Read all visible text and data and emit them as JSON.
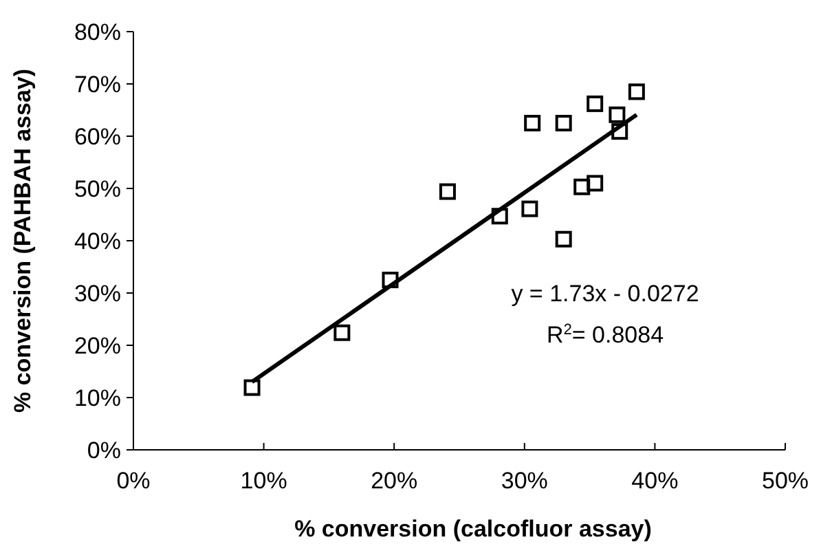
{
  "chart_data": {
    "type": "scatter",
    "xlabel": "% conversion (calcofluor assay)",
    "ylabel": "% conversion (PAHBAH assay)",
    "xlim": [
      0,
      50
    ],
    "xticks": [
      {
        "value": 0,
        "label": "0%"
      },
      {
        "value": 10,
        "label": "10%"
      },
      {
        "value": 20,
        "label": "20%"
      },
      {
        "value": 30,
        "label": "30%"
      },
      {
        "value": 40,
        "label": "40%"
      },
      {
        "value": 50,
        "label": "50%"
      }
    ],
    "ylim": [
      0,
      80
    ],
    "yticks": [
      {
        "value": 0,
        "label": "0%"
      },
      {
        "value": 10,
        "label": "10%"
      },
      {
        "value": 20,
        "label": "20%"
      },
      {
        "value": 30,
        "label": "30%"
      },
      {
        "value": 40,
        "label": "40%"
      },
      {
        "value": 50,
        "label": "50%"
      },
      {
        "value": 60,
        "label": "60%"
      },
      {
        "value": 70,
        "label": "70%"
      },
      {
        "value": 80,
        "label": "80%"
      }
    ],
    "grid": false,
    "legend": false,
    "marker": "square",
    "series": [
      {
        "color": "#000000",
        "x": [
          9.1,
          16.0,
          19.7,
          24.1,
          28.1,
          30.4,
          30.6,
          33.0,
          33.0,
          34.4,
          35.4,
          35.4,
          37.1,
          37.3,
          38.6
        ],
        "values": [
          11.9,
          22.4,
          32.5,
          49.4,
          44.7,
          46.1,
          62.5,
          62.5,
          40.3,
          50.3,
          51.0,
          66.2,
          64.1,
          60.9,
          68.5
        ]
      },
      {
        "type": "line",
        "color": "#000000",
        "x": [
          9.1,
          38.6
        ],
        "values": [
          13.0,
          64.1
        ],
        "line_style": "solid",
        "marker": "none"
      }
    ],
    "annotations": [
      "y = 1.73x - 0.0272",
      "R$^{2}$= 0.8084"
    ]
  }
}
